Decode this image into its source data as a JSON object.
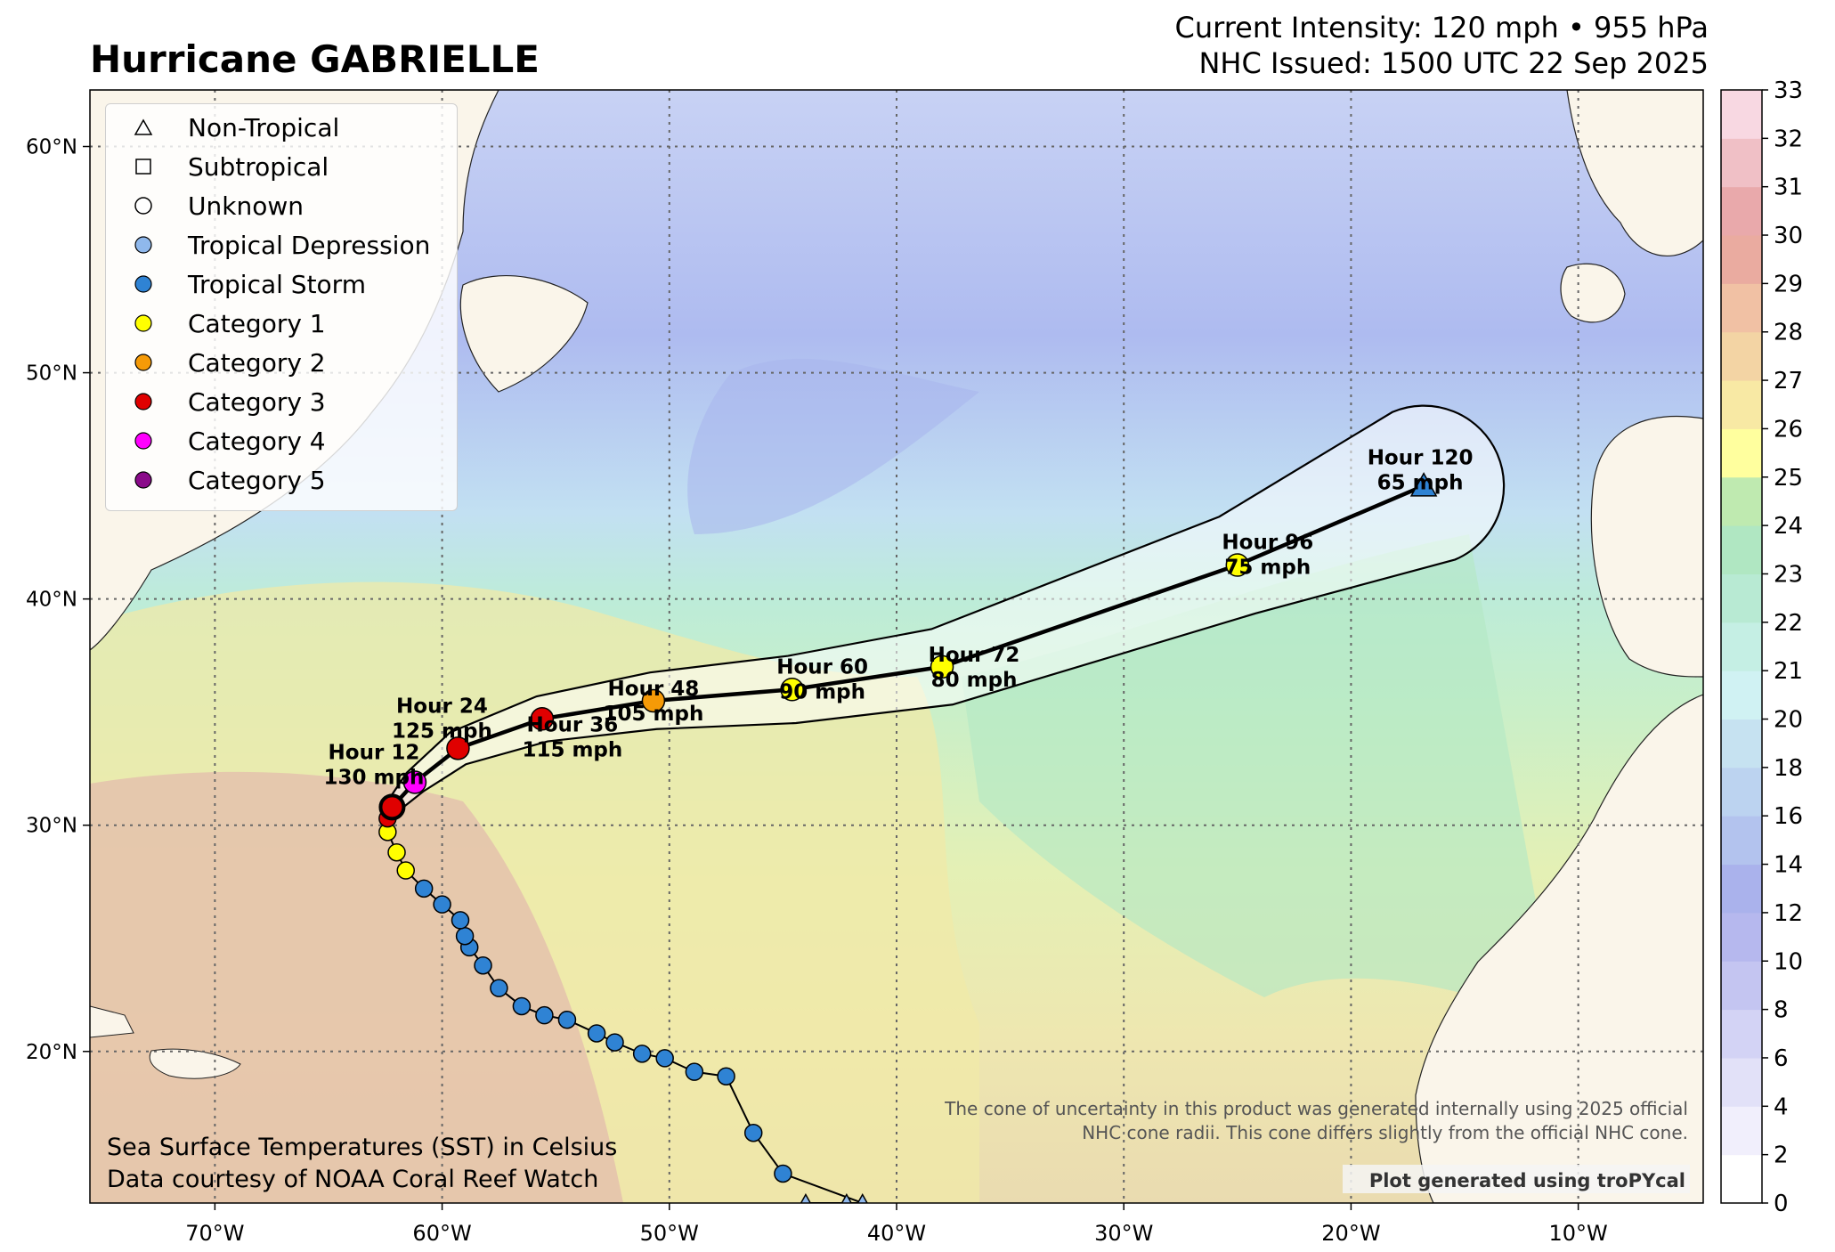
{
  "title": "Hurricane GABRIELLE",
  "subtitle": {
    "line1": "Current Intensity: 120 mph • 955 hPa",
    "line2": "NHC Issued: 1500 UTC 22 Sep 2025"
  },
  "map": {
    "lon_range": [
      -75.5,
      -4.5
    ],
    "lat_range": [
      13.3,
      62.5
    ],
    "lon_ticks": [
      {
        "lon": -70,
        "label": "70°W"
      },
      {
        "lon": -60,
        "label": "60°W"
      },
      {
        "lon": -50,
        "label": "50°W"
      },
      {
        "lon": -40,
        "label": "40°W"
      },
      {
        "lon": -30,
        "label": "30°W"
      },
      {
        "lon": -20,
        "label": "20°W"
      },
      {
        "lon": -10,
        "label": "10°W"
      }
    ],
    "lat_ticks": [
      {
        "lat": 20,
        "label": "20°N"
      },
      {
        "lat": 30,
        "label": "30°N"
      },
      {
        "lat": 40,
        "label": "40°N"
      },
      {
        "lat": 50,
        "label": "50°N"
      },
      {
        "lat": 60,
        "label": "60°N"
      }
    ],
    "land_color": "#faf5ea",
    "grid": true
  },
  "legend": {
    "items": [
      {
        "label": "Non-Tropical",
        "marker": "triangle-open",
        "color": "#ffffff"
      },
      {
        "label": "Subtropical",
        "marker": "square-open",
        "color": "#ffffff"
      },
      {
        "label": "Unknown",
        "marker": "circle-open",
        "color": "#ffffff"
      },
      {
        "label": "Tropical Depression",
        "marker": "circle",
        "color": "#8fb8ec"
      },
      {
        "label": "Tropical Storm",
        "marker": "circle",
        "color": "#2f83d4"
      },
      {
        "label": "Category 1",
        "marker": "circle",
        "color": "#ffff00"
      },
      {
        "label": "Category 2",
        "marker": "circle",
        "color": "#f59a07"
      },
      {
        "label": "Category 3",
        "marker": "circle",
        "color": "#e00000"
      },
      {
        "label": "Category 4",
        "marker": "circle",
        "color": "#ff00ff"
      },
      {
        "label": "Category 5",
        "marker": "circle",
        "color": "#8a0a8a"
      }
    ]
  },
  "observed_track": [
    {
      "lon": -44.0,
      "lat": 13.3,
      "cat": "td",
      "marker": "triangle"
    },
    {
      "lon": -42.2,
      "lat": 13.3,
      "cat": "td",
      "marker": "triangle"
    },
    {
      "lon": -41.5,
      "lat": 13.3,
      "cat": "td",
      "marker": "triangle"
    },
    {
      "lon": -45.0,
      "lat": 14.6,
      "cat": "ts"
    },
    {
      "lon": -46.3,
      "lat": 16.4,
      "cat": "ts"
    },
    {
      "lon": -47.5,
      "lat": 18.9,
      "cat": "ts"
    },
    {
      "lon": -48.9,
      "lat": 19.1,
      "cat": "ts"
    },
    {
      "lon": -50.2,
      "lat": 19.7,
      "cat": "ts"
    },
    {
      "lon": -51.2,
      "lat": 19.9,
      "cat": "ts"
    },
    {
      "lon": -52.4,
      "lat": 20.4,
      "cat": "ts"
    },
    {
      "lon": -53.2,
      "lat": 20.8,
      "cat": "ts"
    },
    {
      "lon": -54.5,
      "lat": 21.4,
      "cat": "ts"
    },
    {
      "lon": -55.5,
      "lat": 21.6,
      "cat": "ts"
    },
    {
      "lon": -56.5,
      "lat": 22.0,
      "cat": "ts"
    },
    {
      "lon": -57.5,
      "lat": 22.8,
      "cat": "ts"
    },
    {
      "lon": -58.2,
      "lat": 23.8,
      "cat": "ts"
    },
    {
      "lon": -58.8,
      "lat": 24.6,
      "cat": "ts"
    },
    {
      "lon": -59.0,
      "lat": 25.1,
      "cat": "ts"
    },
    {
      "lon": -59.2,
      "lat": 25.8,
      "cat": "ts"
    },
    {
      "lon": -60.0,
      "lat": 26.5,
      "cat": "ts"
    },
    {
      "lon": -60.8,
      "lat": 27.2,
      "cat": "ts"
    },
    {
      "lon": -61.6,
      "lat": 28.0,
      "cat": "c1"
    },
    {
      "lon": -62.0,
      "lat": 28.8,
      "cat": "c1"
    },
    {
      "lon": -62.4,
      "lat": 29.7,
      "cat": "c1"
    },
    {
      "lon": -62.4,
      "lat": 30.3,
      "cat": "c3"
    },
    {
      "lon": -62.2,
      "lat": 30.8,
      "cat": "c3",
      "current": true
    }
  ],
  "forecast": [
    {
      "lon": -61.2,
      "lat": 31.9,
      "cat": "c4",
      "label": "Hour 12",
      "wind": "130 mph"
    },
    {
      "lon": -59.3,
      "lat": 33.4,
      "cat": "c3",
      "label": "Hour 24",
      "wind": "125 mph"
    },
    {
      "lon": -55.6,
      "lat": 34.7,
      "cat": "c3",
      "label": "Hour 36",
      "wind": "115 mph"
    },
    {
      "lon": -50.7,
      "lat": 35.5,
      "cat": "c2",
      "label": "Hour 48",
      "wind": "105 mph"
    },
    {
      "lon": -44.6,
      "lat": 36.0,
      "cat": "c1",
      "label": "Hour 60",
      "wind": "90 mph"
    },
    {
      "lon": -38.0,
      "lat": 37.0,
      "cat": "c1",
      "label": "Hour 72",
      "wind": "80 mph"
    },
    {
      "lon": -25.0,
      "lat": 41.5,
      "cat": "c1",
      "label": "Hour 96",
      "wind": "75 mph"
    },
    {
      "lon": -16.8,
      "lat": 45.0,
      "cat": "ts",
      "marker": "triangle",
      "label": "Hour 120",
      "wind": "65 mph"
    }
  ],
  "cone_note": {
    "line1": "The cone of uncertainty in this product was generated internally using 2025 official",
    "line2": "NHC cone radii. This cone differs slightly from the official NHC cone."
  },
  "credit": "Plot generated using troPYcal",
  "sst_note": {
    "line1": "Sea Surface Temperatures (SST) in Celsius",
    "line2": "Data courtesy of NOAA Coral Reef Watch"
  },
  "colorbar": {
    "ticks": [
      "0",
      "2",
      "4",
      "6",
      "8",
      "10",
      "12",
      "14",
      "16",
      "18",
      "20",
      "21",
      "22",
      "23",
      "24",
      "25",
      "26",
      "27",
      "28",
      "29",
      "30",
      "31",
      "32",
      "33"
    ],
    "colors": [
      "#ffffff",
      "#f1effc",
      "#e2e1f8",
      "#d3d3f5",
      "#c4c5f1",
      "#b6b8ee",
      "#aab2ec",
      "#b3c3ee",
      "#bcd3f0",
      "#c6e2f1",
      "#d0f2f3",
      "#c5efe4",
      "#b8ead3",
      "#b0e7c2",
      "#bfeab0",
      "#ffff9e",
      "#f8e9a4",
      "#f3d4a4",
      "#f1c1a4",
      "#eaaba0",
      "#e9a9ab",
      "#f0c0c6",
      "#f8d8e2"
    ]
  }
}
